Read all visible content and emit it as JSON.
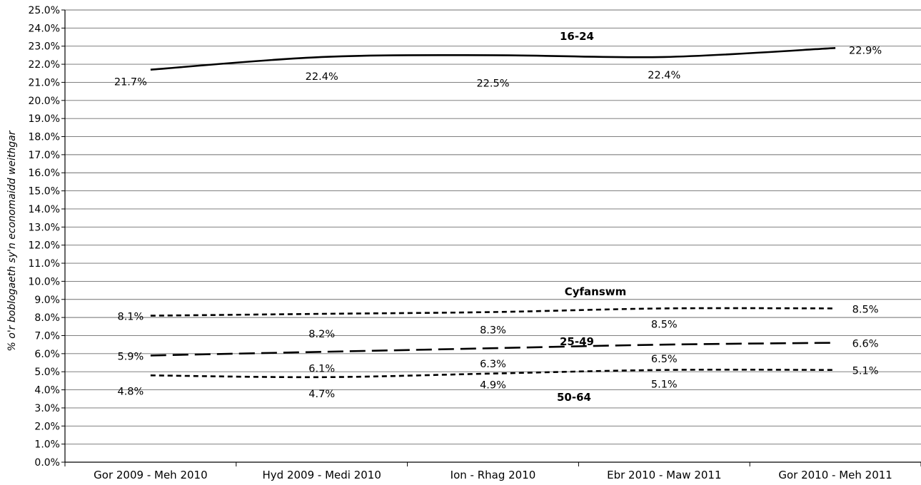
{
  "chart_data": {
    "type": "line",
    "title": "",
    "xlabel": "",
    "ylabel": "% o'r boblogaeth sy'n economaidd  weithgar",
    "ylim": [
      0,
      25
    ],
    "y_tick_step": 1,
    "y_tick_format": "percent_1dp",
    "grid": true,
    "legend": "none",
    "categories": [
      "Gor 2009 - Meh 2010",
      "Hyd 2009 - Medi 2010",
      "Ion - Rhag 2010",
      "Ebr 2010 - Maw 2011",
      "Gor 2010 - Meh 2011"
    ],
    "series": [
      {
        "name": "16-24",
        "line_style": "solid",
        "color": "#000000",
        "values": [
          21.7,
          22.4,
          22.5,
          22.4,
          22.9
        ],
        "labels": [
          "21.7%",
          "22.4%",
          "22.5%",
          "22.4%",
          "22.9%"
        ]
      },
      {
        "name": "Cyfanswm",
        "line_style": "dotted",
        "color": "#000000",
        "values": [
          8.1,
          8.2,
          8.3,
          8.5,
          8.5
        ],
        "labels": [
          "8.1%",
          "8.2%",
          "8.3%",
          "8.5%",
          "8.5%"
        ]
      },
      {
        "name": "25-49",
        "line_style": "dashed",
        "color": "#000000",
        "values": [
          5.9,
          6.1,
          6.3,
          6.5,
          6.6
        ],
        "labels": [
          "5.9%",
          "6.1%",
          "6.3%",
          "6.5%",
          "6.6%"
        ]
      },
      {
        "name": "50-64",
        "line_style": "dotted",
        "color": "#000000",
        "values": [
          4.8,
          4.7,
          4.9,
          5.1,
          5.1
        ],
        "labels": [
          "4.8%",
          "4.7%",
          "4.9%",
          "5.1%",
          "5.1%"
        ]
      }
    ]
  }
}
